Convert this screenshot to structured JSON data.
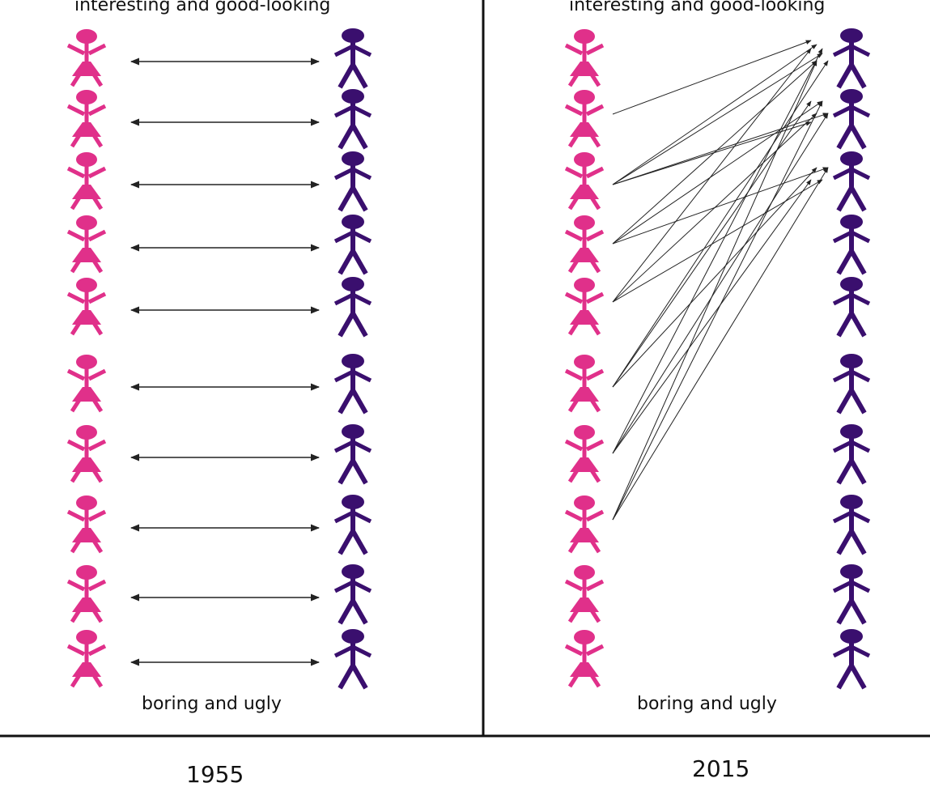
{
  "panels": [
    {
      "year": "1955",
      "top_label": "interesting and good-looking",
      "bottom_label": "boring and ugly",
      "pairings": [
        {
          "from": 1,
          "to": 1
        },
        {
          "from": 2,
          "to": 2
        },
        {
          "from": 3,
          "to": 3
        },
        {
          "from": 4,
          "to": 4
        },
        {
          "from": 5,
          "to": 5
        },
        {
          "from": 6,
          "to": 6
        },
        {
          "from": 7,
          "to": 7
        },
        {
          "from": 8,
          "to": 8
        },
        {
          "from": 9,
          "to": 9
        },
        {
          "from": 10,
          "to": 10
        }
      ],
      "arrow_style": "double"
    },
    {
      "year": "2015",
      "top_label": "interesting and good-looking",
      "bottom_label": "boring and ugly",
      "pairings": [
        {
          "from": 2,
          "to": 1
        },
        {
          "from": 3,
          "to": 1
        },
        {
          "from": 3,
          "to": 1
        },
        {
          "from": 3,
          "to": 2
        },
        {
          "from": 3,
          "to": 2
        },
        {
          "from": 4,
          "to": 1
        },
        {
          "from": 4,
          "to": 2
        },
        {
          "from": 4,
          "to": 3
        },
        {
          "from": 5,
          "to": 1
        },
        {
          "from": 5,
          "to": 2
        },
        {
          "from": 5,
          "to": 3
        },
        {
          "from": 6,
          "to": 1
        },
        {
          "from": 6,
          "to": 2
        },
        {
          "from": 6,
          "to": 3
        },
        {
          "from": 7,
          "to": 1
        },
        {
          "from": 7,
          "to": 2
        },
        {
          "from": 7,
          "to": 3
        },
        {
          "from": 8,
          "to": 1
        },
        {
          "from": 8,
          "to": 2
        },
        {
          "from": 8,
          "to": 3
        }
      ],
      "arrow_style": "single"
    }
  ],
  "figures_per_column": 10,
  "colors": {
    "female": "#e0308a",
    "male": "#3a0f6e",
    "arrow": "#222222",
    "divider": "#111111"
  },
  "icons": [
    "female-figure-icon",
    "male-figure-icon"
  ]
}
